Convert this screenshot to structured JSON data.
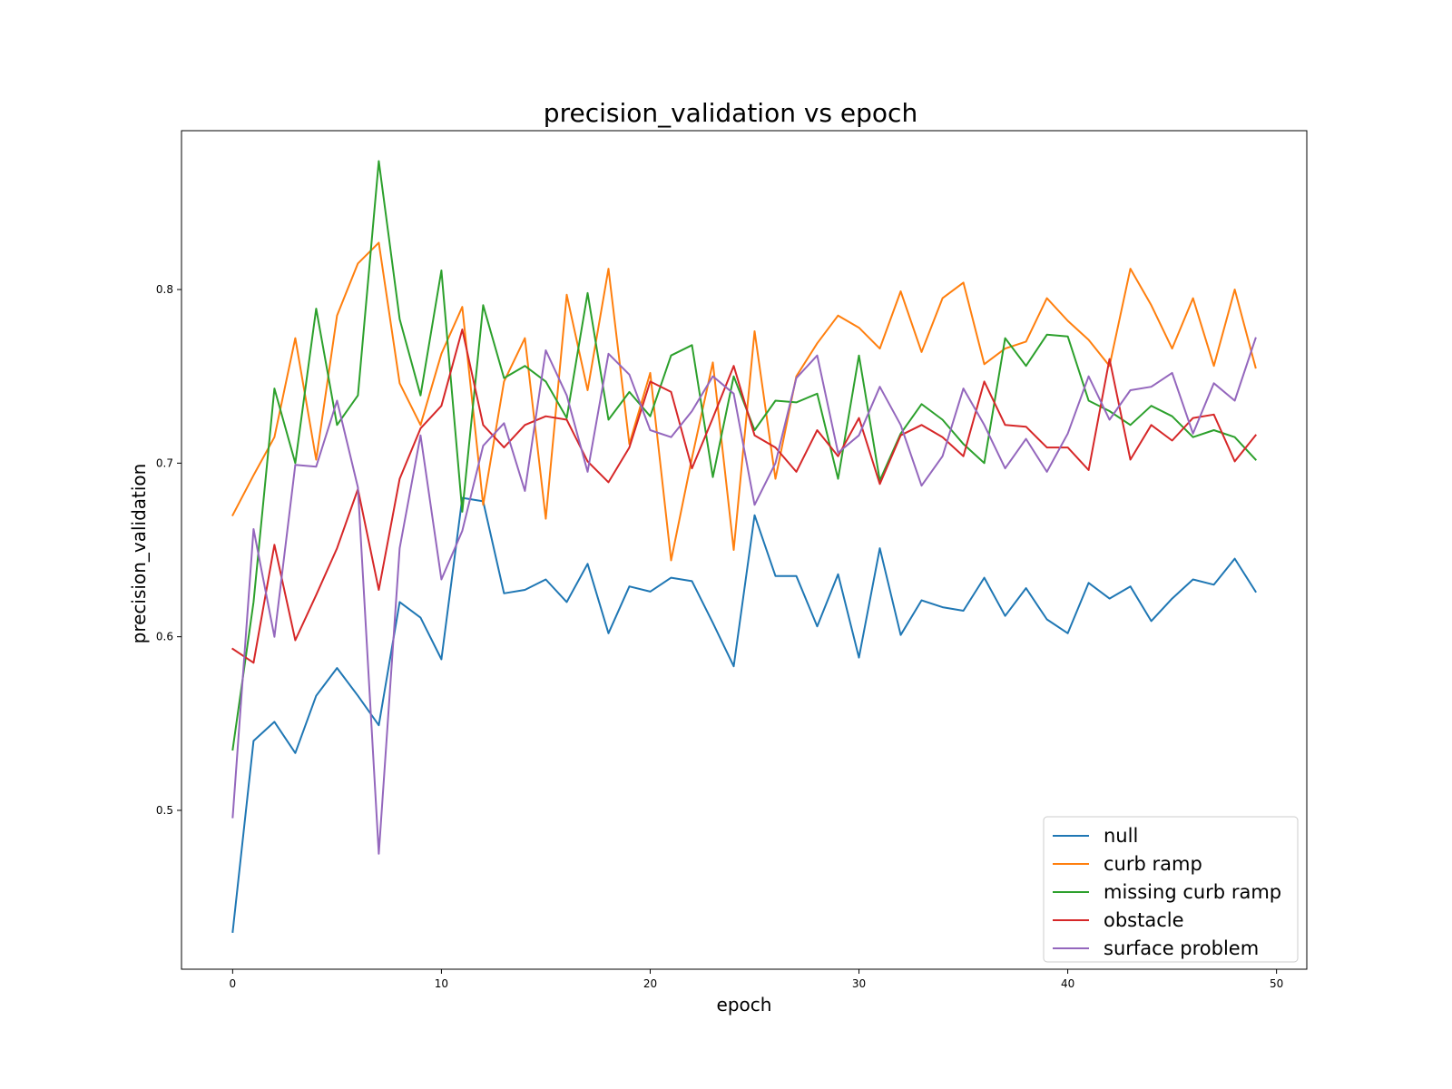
{
  "chart_data": {
    "type": "line",
    "title": "precision_validation vs epoch",
    "xlabel": "epoch",
    "ylabel": "precision_validation",
    "xlim": [
      -2.45,
      51.45
    ],
    "ylim": [
      0.4085,
      0.8915
    ],
    "xticks": [
      0,
      10,
      20,
      30,
      40,
      50
    ],
    "yticks": [
      0.5,
      0.6,
      0.7,
      0.8
    ],
    "grid": false,
    "legend": "lower-right",
    "x": [
      0,
      1,
      2,
      3,
      4,
      5,
      6,
      7,
      8,
      9,
      10,
      11,
      12,
      13,
      14,
      15,
      16,
      17,
      18,
      19,
      20,
      21,
      22,
      23,
      24,
      25,
      26,
      27,
      28,
      29,
      30,
      31,
      32,
      33,
      34,
      35,
      36,
      37,
      38,
      39,
      40,
      41,
      42,
      43,
      44,
      45,
      46,
      47,
      48,
      49
    ],
    "series": [
      {
        "name": "null",
        "color": "#1f77b4",
        "values": [
          0.43,
          0.54,
          0.551,
          0.533,
          0.566,
          0.582,
          0.566,
          0.549,
          0.62,
          0.611,
          0.587,
          0.68,
          0.678,
          0.625,
          0.627,
          0.633,
          0.62,
          0.642,
          0.602,
          0.629,
          0.626,
          0.634,
          0.632,
          0.608,
          0.583,
          0.67,
          0.635,
          0.635,
          0.606,
          0.636,
          0.588,
          0.651,
          0.601,
          0.621,
          0.617,
          0.615,
          0.634,
          0.612,
          0.628,
          0.61,
          0.602,
          0.631,
          0.622,
          0.629,
          0.609,
          0.622,
          0.633,
          0.63,
          0.645,
          0.626
        ]
      },
      {
        "name": "curb ramp",
        "color": "#ff7f0e",
        "values": [
          0.67,
          0.693,
          0.715,
          0.772,
          0.702,
          0.785,
          0.815,
          0.827,
          0.746,
          0.722,
          0.763,
          0.79,
          0.676,
          0.747,
          0.772,
          0.668,
          0.797,
          0.742,
          0.812,
          0.711,
          0.752,
          0.644,
          0.703,
          0.758,
          0.65,
          0.776,
          0.691,
          0.75,
          0.769,
          0.785,
          0.778,
          0.766,
          0.799,
          0.764,
          0.795,
          0.804,
          0.757,
          0.766,
          0.77,
          0.795,
          0.782,
          0.771,
          0.756,
          0.812,
          0.791,
          0.766,
          0.795,
          0.756,
          0.8,
          0.755
        ]
      },
      {
        "name": "missing curb ramp",
        "color": "#2ca02c",
        "values": [
          0.535,
          0.62,
          0.743,
          0.7,
          0.789,
          0.722,
          0.739,
          0.874,
          0.783,
          0.739,
          0.811,
          0.672,
          0.791,
          0.749,
          0.756,
          0.747,
          0.726,
          0.798,
          0.725,
          0.741,
          0.727,
          0.762,
          0.768,
          0.692,
          0.75,
          0.719,
          0.736,
          0.735,
          0.74,
          0.691,
          0.762,
          0.69,
          0.717,
          0.734,
          0.725,
          0.711,
          0.7,
          0.772,
          0.756,
          0.774,
          0.773,
          0.736,
          0.73,
          0.722,
          0.733,
          0.727,
          0.715,
          0.719,
          0.715,
          0.702
        ]
      },
      {
        "name": "obstacle",
        "color": "#d62728",
        "values": [
          0.593,
          0.585,
          0.653,
          0.598,
          0.624,
          0.651,
          0.685,
          0.627,
          0.691,
          0.72,
          0.733,
          0.777,
          0.722,
          0.709,
          0.722,
          0.727,
          0.725,
          0.701,
          0.689,
          0.709,
          0.747,
          0.741,
          0.697,
          0.726,
          0.756,
          0.716,
          0.709,
          0.695,
          0.719,
          0.704,
          0.726,
          0.688,
          0.716,
          0.722,
          0.715,
          0.704,
          0.747,
          0.722,
          0.721,
          0.709,
          0.709,
          0.696,
          0.76,
          0.702,
          0.722,
          0.713,
          0.726,
          0.728,
          0.701,
          0.716
        ]
      },
      {
        "name": "surface problem",
        "color": "#9467bd",
        "values": [
          0.496,
          0.662,
          0.6,
          0.699,
          0.698,
          0.736,
          0.686,
          0.475,
          0.651,
          0.716,
          0.633,
          0.661,
          0.71,
          0.723,
          0.684,
          0.765,
          0.739,
          0.695,
          0.763,
          0.751,
          0.719,
          0.715,
          0.73,
          0.75,
          0.74,
          0.676,
          0.7,
          0.749,
          0.762,
          0.706,
          0.716,
          0.744,
          0.722,
          0.687,
          0.704,
          0.743,
          0.722,
          0.697,
          0.714,
          0.695,
          0.717,
          0.75,
          0.725,
          0.742,
          0.744,
          0.752,
          0.717,
          0.746,
          0.736,
          0.772
        ]
      }
    ]
  }
}
